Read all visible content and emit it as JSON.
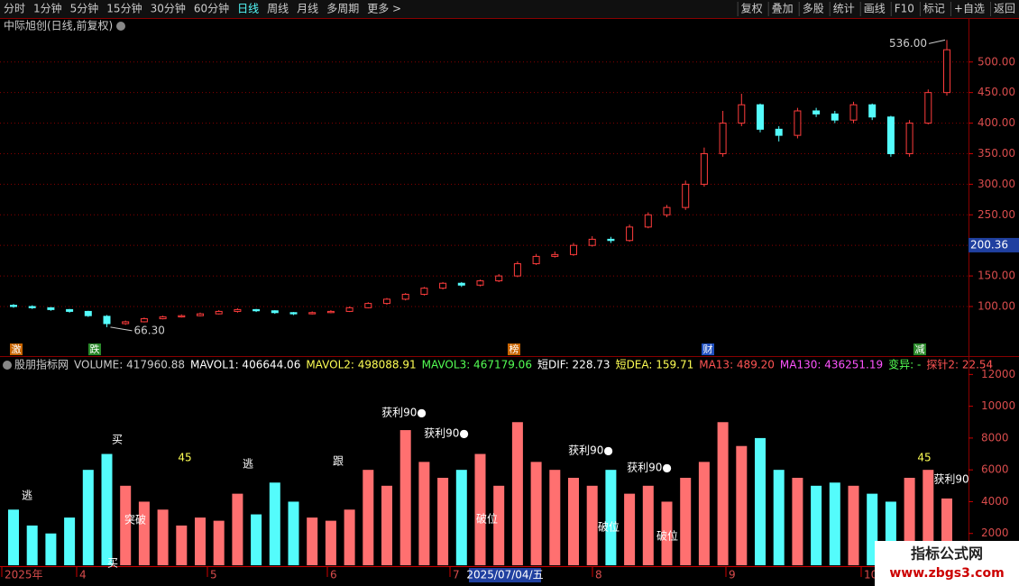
{
  "toolbar": {
    "left": [
      "分时",
      "1分钟",
      "5分钟",
      "15分钟",
      "30分钟",
      "60分钟",
      "日线",
      "周线",
      "月线",
      "多周期",
      "更多 >"
    ],
    "active": "日线",
    "right": [
      "复权",
      "叠加",
      "多股",
      "统计",
      "画线",
      "F10",
      "标记",
      "+自选",
      "返回"
    ]
  },
  "chart_data": [
    {
      "type": "candlestick",
      "title": "中际旭创(日线,前复权)",
      "open": [
        102,
        100,
        98,
        95,
        92,
        84,
        72,
        75,
        80,
        83,
        85,
        88,
        92,
        95,
        93,
        90,
        88,
        90,
        92,
        98,
        105,
        112,
        120,
        130,
        138,
        135,
        142,
        150,
        170,
        182,
        185,
        200,
        210,
        208,
        230,
        250,
        262,
        300,
        350,
        400,
        430,
        390,
        380,
        420,
        415,
        405,
        430,
        410,
        350,
        400,
        450
      ],
      "high": [
        104,
        102,
        99,
        96,
        93,
        86,
        77,
        82,
        85,
        87,
        90,
        94,
        97,
        96,
        94,
        91,
        92,
        94,
        100,
        107,
        114,
        122,
        132,
        140,
        140,
        144,
        153,
        174,
        186,
        190,
        204,
        215,
        214,
        234,
        254,
        266,
        306,
        360,
        420,
        448,
        432,
        395,
        425,
        425,
        420,
        435,
        432,
        412,
        405,
        455,
        536
      ],
      "low": [
        98,
        96,
        93,
        90,
        83,
        66.3,
        70,
        74,
        79,
        82,
        84,
        87,
        90,
        91,
        88,
        86,
        87,
        89,
        91,
        97,
        103,
        110,
        118,
        128,
        132,
        133,
        140,
        148,
        168,
        180,
        183,
        198,
        204,
        206,
        228,
        246,
        258,
        296,
        345,
        395,
        385,
        370,
        375,
        410,
        400,
        400,
        405,
        345,
        345,
        398,
        445
      ],
      "close": [
        100,
        98,
        95,
        92,
        85,
        72,
        75,
        80,
        83,
        85,
        88,
        92,
        95,
        93,
        90,
        88,
        90,
        92,
        98,
        105,
        112,
        120,
        130,
        138,
        135,
        142,
        150,
        170,
        182,
        185,
        200,
        210,
        208,
        230,
        250,
        262,
        300,
        350,
        400,
        430,
        390,
        380,
        420,
        415,
        405,
        430,
        410,
        350,
        400,
        450,
        520
      ],
      "up_color": "#ff3c3c",
      "down_color": "#54fcfc",
      "ylim": [
        41,
        566
      ],
      "yticks": [
        {
          "value": 100,
          "label": "100.00"
        },
        {
          "value": 150,
          "label": "150.00"
        },
        {
          "value": 200,
          "label": "200.00"
        },
        {
          "value": 250,
          "label": "250.00"
        },
        {
          "value": 300,
          "label": "300.00"
        },
        {
          "value": 350,
          "label": "350.00"
        },
        {
          "value": 400,
          "label": "400.00"
        },
        {
          "value": 450,
          "label": "450.00"
        },
        {
          "value": 500,
          "label": "500.00"
        }
      ],
      "high_mark": {
        "value": 536,
        "label": "536.00"
      },
      "low_mark": {
        "value": 66.3,
        "label": "66.30"
      },
      "last_price": {
        "value": 200.36,
        "label": "200.36"
      },
      "badges": [
        {
          "text": "激",
          "color": "#c86400"
        },
        {
          "text": "跌",
          "color": "#2a8a2a"
        },
        {
          "text": "榜",
          "color": "#c86400"
        },
        {
          "text": "财",
          "color": "#2050c0"
        },
        {
          "text": "减",
          "color": "#2a8a2a"
        }
      ]
    },
    {
      "type": "bar",
      "values": [
        3500,
        2500,
        2000,
        3000,
        6000,
        7000,
        5000,
        4000,
        3500,
        2500,
        3000,
        2800,
        4500,
        3200,
        5200,
        4000,
        3000,
        2800,
        3500,
        6000,
        5000,
        8500,
        6500,
        5500,
        6000,
        7000,
        5000,
        9000,
        6500,
        6000,
        5500,
        5000,
        6000,
        4500,
        5000,
        4000,
        5500,
        6500,
        9000,
        7500,
        8000,
        6000,
        5500,
        5000,
        5200,
        5000,
        4500,
        4000,
        5500,
        6000,
        4200
      ],
      "ylim": [
        0,
        12700
      ],
      "yticks": [
        2000,
        4000,
        6000,
        8000,
        10000,
        12000
      ],
      "legend": [
        {
          "name": "股朋指标网",
          "color": "#cccccc"
        },
        {
          "name": "VOLUME: 417960.88",
          "color": "#cccccc"
        },
        {
          "name": "MAVOL1: 406644.06",
          "color": "#ffffff"
        },
        {
          "name": "MAVOL2: 498088.91",
          "color": "#ffff54"
        },
        {
          "name": "MAVOL3: 467179.06",
          "color": "#54ff54"
        },
        {
          "name": "短DIF: 228.73",
          "color": "#ffffff"
        },
        {
          "name": "短DEA: 159.71",
          "color": "#ffff54"
        },
        {
          "name": "MA13: 489.20",
          "color": "#ff5454"
        },
        {
          "name": "MA130: 436251.19",
          "color": "#ff54ff"
        },
        {
          "name": "变异: -",
          "color": "#54ff54"
        },
        {
          "name": "探针2: 22.54",
          "color": "#ff5454"
        }
      ],
      "signals": [
        "逃",
        "买",
        "获利90●",
        "获利90●",
        "获利90●",
        "突破",
        "破位",
        "破位",
        "跟",
        "逃",
        "买",
        "获利90●",
        "破位",
        "45",
        "45",
        "获利90"
      ]
    }
  ],
  "date_axis": {
    "labels": [
      "2025年",
      "4",
      "5",
      "6",
      "7",
      "8",
      "9",
      "10"
    ],
    "cursor": "2025/07/04/五"
  },
  "watermark": {
    "title": "指标公式网",
    "url": "www.zbgs3.com"
  }
}
